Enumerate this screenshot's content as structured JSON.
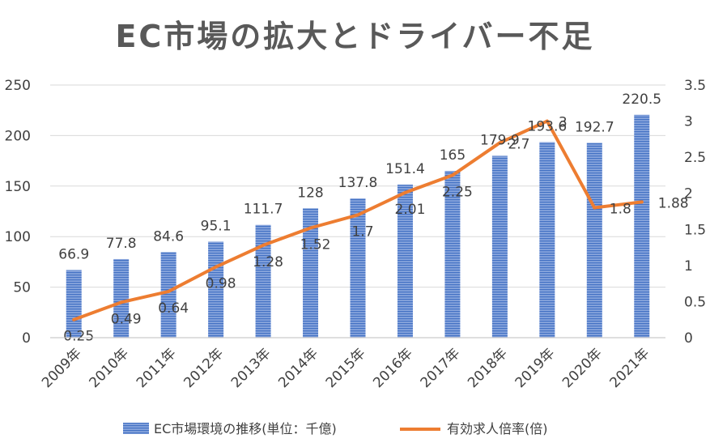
{
  "chart_data": {
    "type": "bar",
    "title": "EC市場の拡大とドライバー不足",
    "categories": [
      "2009年",
      "2010年",
      "2011年",
      "2012年",
      "2013年",
      "2014年",
      "2015年",
      "2016年",
      "2017年",
      "2018年",
      "2019年",
      "2020年",
      "2021年"
    ],
    "series": [
      {
        "name": "EC市場環境の推移(単位：千億)",
        "type": "bar",
        "axis": "left",
        "values": [
          66.9,
          77.8,
          84.6,
          95.1,
          111.7,
          128,
          137.8,
          151.4,
          165,
          179.9,
          193.6,
          192.7,
          220.5
        ],
        "labels": [
          "66.9",
          "77.8",
          "84.6",
          "95.1",
          "111.7",
          "128",
          "137.8",
          "151.4",
          "165",
          "179.9",
          "193.6",
          "192.7",
          "220.5"
        ]
      },
      {
        "name": "有効求人倍率(倍)",
        "type": "line",
        "axis": "right",
        "values": [
          0.25,
          0.49,
          0.64,
          0.98,
          1.28,
          1.52,
          1.7,
          2.01,
          2.25,
          2.7,
          3,
          1.8,
          1.88
        ],
        "labels": [
          "0.25",
          "0.49",
          "0.64",
          "0.98",
          "1.28",
          "1.52",
          "1.7",
          "2.01",
          "2.25",
          "2.7",
          "3",
          "1.8",
          "1.88"
        ]
      }
    ],
    "y_left": {
      "min": 0,
      "max": 250,
      "ticks": [
        "0",
        "50",
        "100",
        "150",
        "200",
        "250"
      ]
    },
    "y_right": {
      "min": 0,
      "max": 3.5,
      "ticks": [
        "0",
        "0.5",
        "1",
        "1.5",
        "2",
        "2.5",
        "3",
        "3.5"
      ]
    },
    "grid": true,
    "legend_position": "bottom",
    "colors": {
      "bar": "#4472c4",
      "bar_stripe": "#a9bde8",
      "line": "#ed7d31",
      "grid": "#d9d9d9",
      "text": "#404040",
      "title": "#595959"
    }
  }
}
